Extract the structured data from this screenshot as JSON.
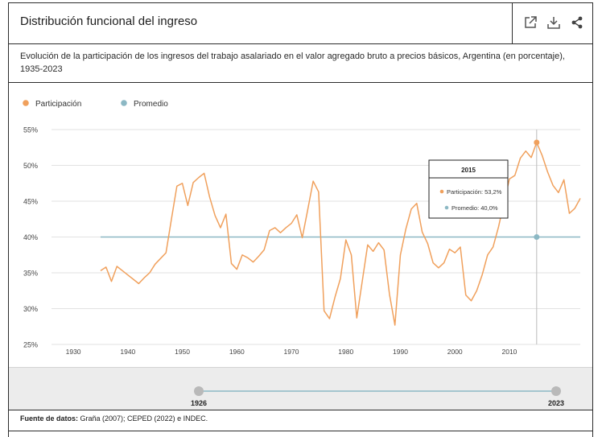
{
  "header": {
    "title": "Distribución funcional del ingreso",
    "subtitle": "Evolución de la participación de los ingresos del trabajo asalariado en el valor agregado bruto a precios básicos, Argentina (en porcentaje), 1935-2023",
    "icons": [
      "external-link-icon",
      "download-icon",
      "share-icon"
    ]
  },
  "legend": {
    "series1": "Participación",
    "series2": "Promedio"
  },
  "tooltip": {
    "year": "2015",
    "line1": "Participación: 53,2%",
    "line2": "Promedio: 40,0%"
  },
  "timeline": {
    "start_label": "1926",
    "end_label": "2023"
  },
  "footer": {
    "source_label": "Fuente de datos:",
    "source_text": " Graña (2007); CEPED (2022) e INDEC."
  },
  "colors": {
    "participacion": "#f0a05c",
    "promedio": "#8cb8c4",
    "grid": "#e2e2e2"
  },
  "chart_data": {
    "type": "line",
    "title": "Distribución funcional del ingreso",
    "xlabel": "",
    "ylabel": "",
    "xlim": [
      1926,
      2023
    ],
    "ylim": [
      25,
      55
    ],
    "x_ticks": [
      1930,
      1940,
      1950,
      1960,
      1970,
      1980,
      1990,
      2000,
      2010
    ],
    "y_ticks": [
      25,
      30,
      35,
      40,
      45,
      50,
      55
    ],
    "y_tick_labels": [
      "25%",
      "30%",
      "35%",
      "40%",
      "45%",
      "50%",
      "55%"
    ],
    "x_tick_labels": [
      "1930",
      "1940",
      "1950",
      "1960",
      "1970",
      "1980",
      "1990",
      "2000",
      "2010"
    ],
    "series": [
      {
        "name": "Participación",
        "x": [
          1935,
          1936,
          1937,
          1938,
          1939,
          1940,
          1941,
          1942,
          1943,
          1944,
          1945,
          1946,
          1947,
          1948,
          1949,
          1950,
          1951,
          1952,
          1953,
          1954,
          1955,
          1956,
          1957,
          1958,
          1959,
          1960,
          1961,
          1962,
          1963,
          1964,
          1965,
          1966,
          1967,
          1968,
          1969,
          1970,
          1971,
          1972,
          1973,
          1974,
          1975,
          1976,
          1977,
          1978,
          1979,
          1980,
          1981,
          1982,
          1983,
          1984,
          1985,
          1986,
          1987,
          1988,
          1989,
          1990,
          1991,
          1992,
          1993,
          1994,
          1995,
          1996,
          1997,
          1998,
          1999,
          2000,
          2001,
          2002,
          2003,
          2004,
          2005,
          2006,
          2007,
          2008,
          2009,
          2010,
          2011,
          2012,
          2013,
          2014,
          2015,
          2016,
          2017,
          2018,
          2019,
          2020,
          2021,
          2022,
          2023
        ],
        "values": [
          35.3,
          35.8,
          33.8,
          35.9,
          35.3,
          34.7,
          34.1,
          33.5,
          34.3,
          35.0,
          36.2,
          37.0,
          37.8,
          42.5,
          47.1,
          47.5,
          44.4,
          47.6,
          48.3,
          48.9,
          45.6,
          43.0,
          41.3,
          43.2,
          36.3,
          35.5,
          37.5,
          37.1,
          36.5,
          37.3,
          38.2,
          40.9,
          41.3,
          40.6,
          41.3,
          41.9,
          43.1,
          39.9,
          43.8,
          47.8,
          46.3,
          29.7,
          28.6,
          31.6,
          34.2,
          39.6,
          37.5,
          28.7,
          33.8,
          38.9,
          38.0,
          39.2,
          38.2,
          32.0,
          27.7,
          37.5,
          41.1,
          43.9,
          44.7,
          40.7,
          39.1,
          36.4,
          35.7,
          36.4,
          38.3,
          37.8,
          38.6,
          31.9,
          31.1,
          32.5,
          34.7,
          37.5,
          38.6,
          41.4,
          44.8,
          48.1,
          48.6,
          51.0,
          52.0,
          51.1,
          53.2,
          51.4,
          49.1,
          47.2,
          46.2,
          48.0,
          43.3,
          44.0,
          45.4
        ]
      },
      {
        "name": "Promedio",
        "x": [
          1935,
          2023
        ],
        "values": [
          40.0,
          40.0
        ]
      }
    ],
    "highlight": {
      "x": 2015,
      "participacion": 53.2,
      "promedio": 40.0
    }
  }
}
